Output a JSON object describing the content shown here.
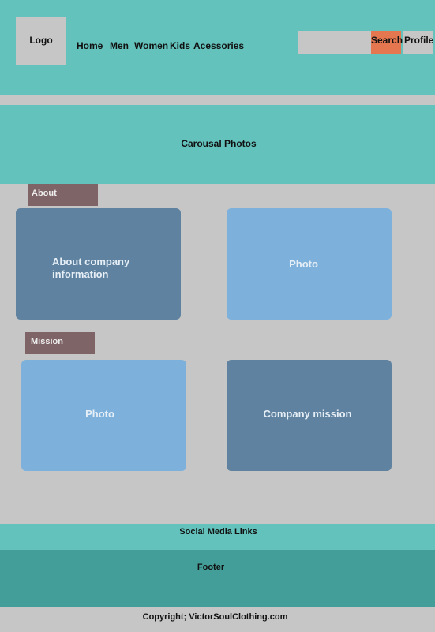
{
  "header": {
    "logo": "Logo",
    "nav": [
      "Home",
      "Men",
      "Women",
      "Kids",
      "Acessories"
    ],
    "search_placeholder": "",
    "search_label": "Search",
    "profile_label": "Profile"
  },
  "carousel": {
    "label": "Carousal Photos"
  },
  "about": {
    "tag": "About",
    "info_line1": "About company",
    "info_line2": "information",
    "photo_label": "Photo"
  },
  "mission": {
    "tag": "Mission",
    "photo_label": "Photo",
    "mission_label": "Company mission"
  },
  "footer": {
    "social": "Social Media Links",
    "label": "Footer",
    "copyright": "Copyright; VictorSoulClothing.com"
  },
  "colors": {
    "teal": "#63c2bc",
    "dark_teal": "#439e99",
    "gray": "#c6c6c6",
    "search_orange": "#e47750",
    "tag_brown": "#7f6467",
    "card_dark": "#5e82a0",
    "card_light": "#7db1dc"
  }
}
